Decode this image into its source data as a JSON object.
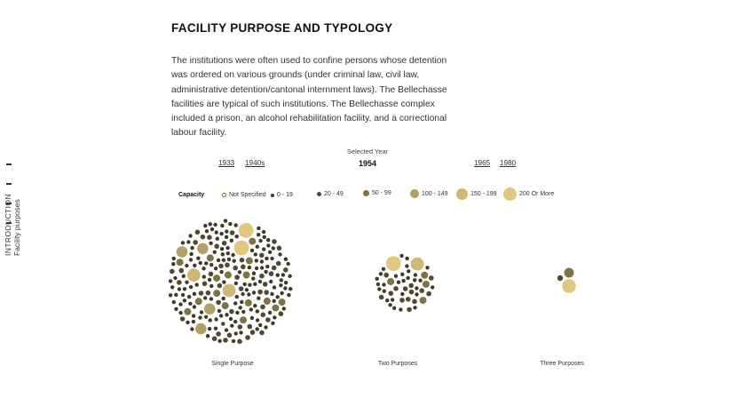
{
  "sidebar": {
    "section_label": "INTRODUCTION",
    "subsection_label": "Facility purposes"
  },
  "main": {
    "title": "FACILITY PURPOSE AND TYPOLOGY",
    "intro": "The institutions were often used to confine persons whose detention was ordered on various grounds (under criminal law, civil law, administrative detention/cantonal internment laws). The Bellechasse facilities are typical of such institutions. The Bellechasse complex included a prison, an alcohol rehabilitation facility, and a correctional labour facility."
  },
  "year_selector": {
    "caption": "Selected Year",
    "selected": "1954",
    "years": [
      "1933",
      "1940s",
      "1965",
      "1980"
    ]
  },
  "legend": {
    "title": "Capacity",
    "items": [
      {
        "label": "Not Specified",
        "color": "#ffffff",
        "stroke": "#6f6738"
      },
      {
        "label": "0 - 19",
        "color": "#3e3a2a"
      },
      {
        "label": "20 - 49",
        "color": "#4f4a30"
      },
      {
        "label": "50 - 99",
        "color": "#7e7345"
      },
      {
        "label": "100 - 149",
        "color": "#b29f63"
      },
      {
        "label": "150 - 199",
        "color": "#cfb874"
      },
      {
        "label": "200 Or More",
        "color": "#e1c77f"
      }
    ]
  },
  "groups": [
    {
      "label": "Single Purpose"
    },
    {
      "label": "Two Purposes"
    },
    {
      "label": "Three Purposes"
    }
  ]
}
